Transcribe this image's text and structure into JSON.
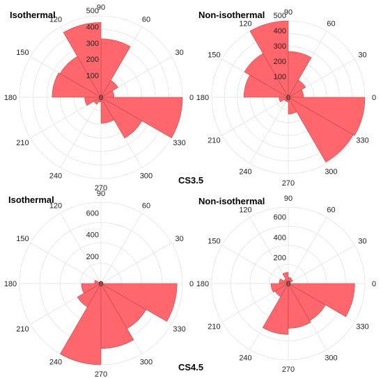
{
  "group_labels": [
    "CS3.5",
    "CS4.5"
  ],
  "chart_data": [
    {
      "type": "polar-histogram",
      "title": "Isothermal",
      "group": "CS3.5",
      "angle_ticks": [
        "0",
        "30",
        "60",
        "90",
        "120",
        "150",
        "180",
        "210",
        "240",
        "270",
        "300",
        "330"
      ],
      "radial_ticks": [
        100,
        200,
        300,
        400,
        500
      ],
      "rmax": 500,
      "bin_width_deg": 30,
      "bins": [
        {
          "start": 0,
          "value": 80
        },
        {
          "start": 30,
          "value": 120
        },
        {
          "start": 60,
          "value": 360
        },
        {
          "start": 90,
          "value": 460
        },
        {
          "start": 120,
          "value": 290
        },
        {
          "start": 150,
          "value": 300
        },
        {
          "start": 180,
          "value": 100
        },
        {
          "start": 210,
          "value": 50
        },
        {
          "start": 240,
          "value": 30
        },
        {
          "start": 270,
          "value": 160
        },
        {
          "start": 300,
          "value": 290
        },
        {
          "start": 330,
          "value": 500
        }
      ]
    },
    {
      "type": "polar-histogram",
      "title": "Non-isothermal",
      "group": "CS3.5",
      "angle_ticks": [
        "0",
        "30",
        "60",
        "90",
        "120",
        "150",
        "180",
        "210",
        "240",
        "270",
        "300",
        "330"
      ],
      "radial_ticks": [
        100,
        200,
        300,
        400,
        500
      ],
      "rmax": 500,
      "bin_width_deg": 30,
      "bins": [
        {
          "start": 0,
          "value": 100
        },
        {
          "start": 30,
          "value": 130
        },
        {
          "start": 60,
          "value": 300
        },
        {
          "start": 90,
          "value": 500
        },
        {
          "start": 120,
          "value": 330
        },
        {
          "start": 150,
          "value": 290
        },
        {
          "start": 180,
          "value": 60
        },
        {
          "start": 210,
          "value": 30
        },
        {
          "start": 240,
          "value": 30
        },
        {
          "start": 270,
          "value": 110
        },
        {
          "start": 300,
          "value": 490
        },
        {
          "start": 330,
          "value": 500
        }
      ]
    },
    {
      "type": "polar-histogram",
      "title": "Isothermal",
      "group": "CS4.5",
      "angle_ticks": [
        "0",
        "30",
        "60",
        "90",
        "120",
        "150",
        "180",
        "210",
        "240",
        "270",
        "300",
        "330"
      ],
      "radial_ticks": [
        200,
        400,
        600
      ],
      "rmax": 750,
      "bin_width_deg": 30,
      "bins": [
        {
          "start": 0,
          "value": 20
        },
        {
          "start": 30,
          "value": 15
        },
        {
          "start": 60,
          "value": 20
        },
        {
          "start": 90,
          "value": 20
        },
        {
          "start": 120,
          "value": 20
        },
        {
          "start": 150,
          "value": 60
        },
        {
          "start": 180,
          "value": 180
        },
        {
          "start": 210,
          "value": 250
        },
        {
          "start": 240,
          "value": 750
        },
        {
          "start": 270,
          "value": 600
        },
        {
          "start": 300,
          "value": 480
        },
        {
          "start": 330,
          "value": 700
        }
      ]
    },
    {
      "type": "polar-histogram",
      "title": "Non-isothermal",
      "group": "CS4.5",
      "angle_ticks": [
        "0",
        "30",
        "60",
        "90",
        "120",
        "150",
        "180",
        "210",
        "240",
        "270",
        "300",
        "330"
      ],
      "radial_ticks": [
        200,
        400,
        600
      ],
      "rmax": 750,
      "bin_width_deg": 30,
      "bins": [
        {
          "start": 0,
          "value": 20
        },
        {
          "start": 30,
          "value": 50
        },
        {
          "start": 60,
          "value": 60
        },
        {
          "start": 90,
          "value": 110
        },
        {
          "start": 120,
          "value": 50
        },
        {
          "start": 150,
          "value": 90
        },
        {
          "start": 180,
          "value": 170
        },
        {
          "start": 210,
          "value": 150
        },
        {
          "start": 240,
          "value": 500
        },
        {
          "start": 270,
          "value": 440
        },
        {
          "start": 300,
          "value": 420
        },
        {
          "start": 330,
          "value": 650
        }
      ]
    }
  ]
}
